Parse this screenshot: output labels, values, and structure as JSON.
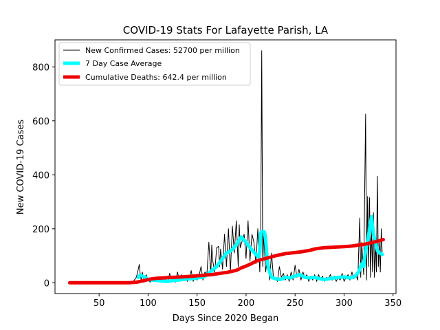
{
  "chart_data": {
    "type": "line",
    "title": "COVID-19 Stats For Lafayette Parish, LA",
    "xlabel": "Days Since 2020 Began",
    "ylabel": "New COVID-19 Cases",
    "xlim": [
      5,
      353
    ],
    "ylim": [
      -40,
      900
    ],
    "xticks": [
      50,
      100,
      150,
      200,
      250,
      300,
      350
    ],
    "yticks": [
      0,
      200,
      400,
      600,
      800
    ],
    "grid": false,
    "legend_position": "top-left",
    "series": [
      {
        "name": "New Confirmed Cases: 52700 per million",
        "color": "#000000",
        "linewidth": 1,
        "x": [
          20,
          40,
          60,
          80,
          85,
          88,
          90,
          91,
          92,
          93,
          94,
          96,
          98,
          100,
          102,
          104,
          106,
          108,
          110,
          112,
          114,
          116,
          118,
          120,
          122,
          124,
          126,
          128,
          130,
          132,
          134,
          136,
          138,
          140,
          142,
          144,
          146,
          148,
          150,
          152,
          154,
          156,
          158,
          160,
          162,
          164,
          165,
          166,
          168,
          170,
          172,
          173,
          174,
          176,
          178,
          180,
          182,
          184,
          186,
          188,
          190,
          192,
          193,
          194,
          196,
          198,
          200,
          202,
          204,
          206,
          208,
          210,
          212,
          214,
          215,
          216,
          217,
          218,
          220,
          222,
          224,
          226,
          228,
          230,
          232,
          234,
          236,
          238,
          240,
          242,
          244,
          246,
          248,
          250,
          252,
          254,
          256,
          258,
          260,
          262,
          264,
          266,
          268,
          270,
          272,
          274,
          276,
          278,
          280,
          282,
          284,
          286,
          288,
          290,
          292,
          294,
          296,
          298,
          300,
          302,
          304,
          306,
          308,
          310,
          312,
          314,
          316,
          317,
          318,
          320,
          322,
          323,
          324,
          325,
          326,
          327,
          328,
          329,
          330,
          331,
          332,
          333,
          334,
          335,
          336,
          337,
          338,
          339
        ],
        "y": [
          0,
          0,
          0,
          0,
          5,
          20,
          50,
          68,
          30,
          10,
          40,
          5,
          30,
          10,
          2,
          15,
          5,
          20,
          8,
          10,
          2,
          5,
          15,
          3,
          35,
          8,
          12,
          2,
          40,
          5,
          30,
          10,
          25,
          5,
          15,
          45,
          5,
          20,
          10,
          25,
          60,
          10,
          40,
          30,
          150,
          30,
          140,
          80,
          40,
          130,
          135,
          60,
          125,
          50,
          180,
          60,
          200,
          40,
          210,
          110,
          230,
          60,
          215,
          130,
          155,
          180,
          90,
          230,
          80,
          180,
          150,
          70,
          200,
          40,
          190,
          860,
          60,
          180,
          40,
          100,
          10,
          110,
          15,
          20,
          5,
          60,
          20,
          35,
          10,
          30,
          5,
          40,
          10,
          65,
          20,
          50,
          10,
          40,
          20,
          30,
          5,
          25,
          10,
          30,
          5,
          30,
          10,
          25,
          5,
          20,
          15,
          30,
          10,
          25,
          5,
          20,
          10,
          35,
          5,
          20,
          30,
          10,
          40,
          15,
          30,
          10,
          240,
          20,
          150,
          30,
          625,
          10,
          320,
          60,
          315,
          20,
          200,
          40,
          260,
          20,
          150,
          40,
          395,
          60,
          150,
          40,
          200,
          100
        ]
      },
      {
        "name": "7 Day Case Average",
        "color": "#00ffff",
        "linewidth": 5,
        "x": [
          90,
          92,
          94,
          96,
          98,
          100,
          105,
          110,
          115,
          120,
          125,
          130,
          135,
          140,
          145,
          150,
          155,
          160,
          165,
          170,
          175,
          180,
          185,
          190,
          195,
          200,
          205,
          210,
          213,
          214,
          215,
          216,
          217,
          218,
          219,
          220,
          221,
          222,
          224,
          226,
          230,
          235,
          240,
          245,
          250,
          255,
          260,
          265,
          270,
          275,
          280,
          285,
          290,
          295,
          300,
          305,
          310,
          315,
          318,
          320,
          322,
          324,
          326,
          328,
          330,
          332,
          334,
          336,
          338,
          339
        ],
        "y": [
          20,
          28,
          25,
          22,
          18,
          12,
          10,
          8,
          6,
          5,
          8,
          10,
          12,
          14,
          15,
          18,
          20,
          28,
          45,
          60,
          85,
          110,
          120,
          140,
          170,
          150,
          125,
          105,
          95,
          120,
          185,
          190,
          190,
          190,
          185,
          160,
          110,
          70,
          40,
          20,
          15,
          12,
          20,
          18,
          25,
          30,
          20,
          18,
          20,
          15,
          12,
          15,
          18,
          20,
          22,
          18,
          20,
          40,
          70,
          60,
          120,
          150,
          200,
          245,
          180,
          150,
          120,
          110,
          108,
          105
        ]
      },
      {
        "name": "Cumulative Deaths: 642.4 per million",
        "color": "#ee0000",
        "linewidth": 5,
        "x": [
          20,
          40,
          60,
          80,
          88,
          92,
          96,
          100,
          105,
          110,
          115,
          120,
          125,
          130,
          135,
          140,
          145,
          150,
          155,
          160,
          165,
          170,
          175,
          180,
          185,
          190,
          195,
          200,
          205,
          210,
          215,
          220,
          225,
          230,
          235,
          240,
          245,
          250,
          255,
          260,
          265,
          270,
          275,
          280,
          285,
          290,
          295,
          300,
          305,
          310,
          315,
          320,
          325,
          330,
          335,
          340
        ],
        "y": [
          0,
          0,
          0,
          0,
          2,
          5,
          8,
          12,
          15,
          17,
          18,
          19,
          20,
          21,
          22,
          23,
          24,
          26,
          27,
          29,
          30,
          33,
          36,
          38,
          42,
          46,
          55,
          62,
          70,
          80,
          85,
          90,
          95,
          100,
          104,
          108,
          110,
          112,
          114,
          117,
          120,
          125,
          128,
          130,
          131,
          132,
          133,
          134,
          135,
          137,
          140,
          142,
          146,
          150,
          155,
          160
        ]
      }
    ]
  }
}
